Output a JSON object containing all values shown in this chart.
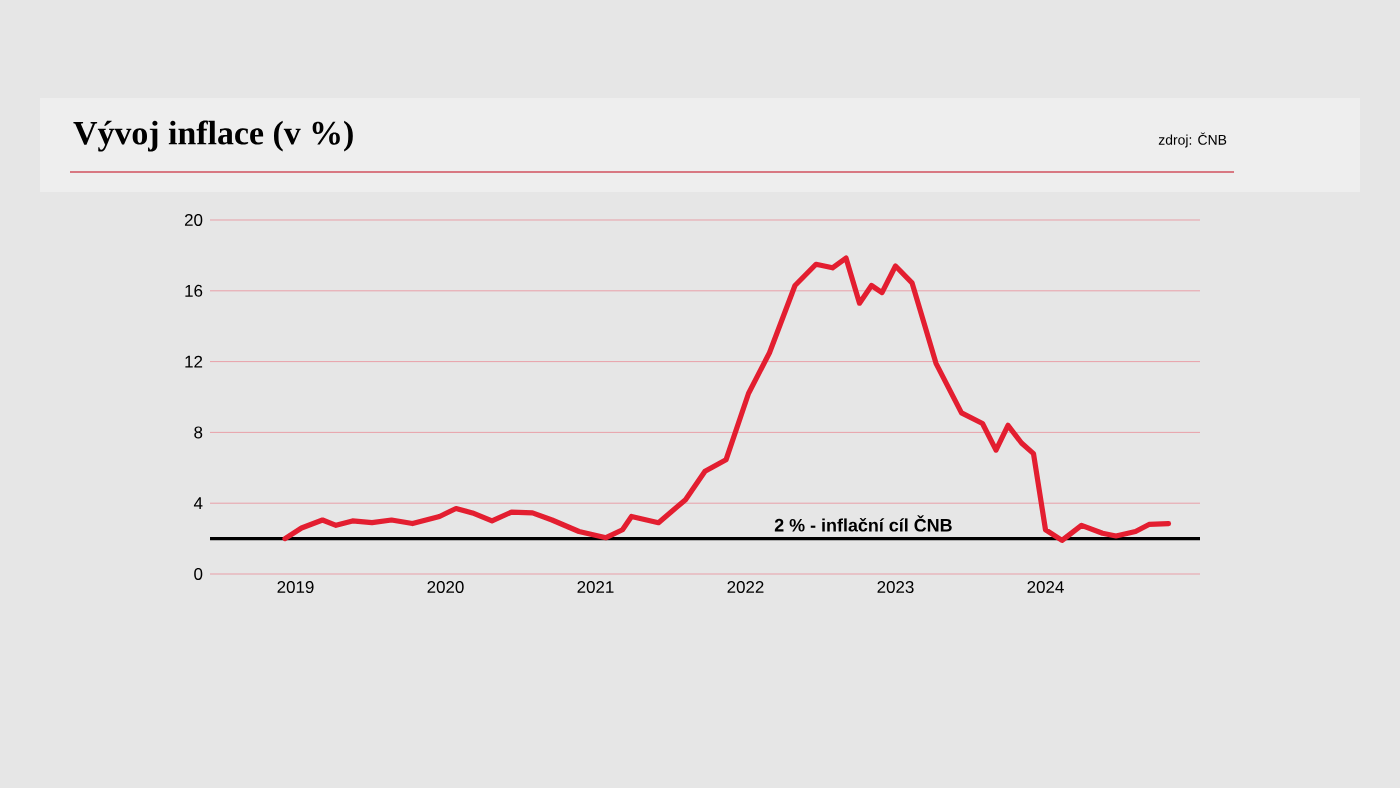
{
  "chart_data": {
    "type": "line",
    "title": "Vývoj inflace (v %)",
    "annotations": [
      "zdroj: ČNB"
    ],
    "x": [
      2018.93,
      2019.04,
      2019.18,
      2019.27,
      2019.38,
      2019.51,
      2019.64,
      2019.78,
      2019.96,
      2020.07,
      2020.18,
      2020.31,
      2020.44,
      2020.58,
      2020.71,
      2020.89,
      2021.07,
      2021.18,
      2021.24,
      2021.42,
      2021.6,
      2021.73,
      2021.87,
      2022.02,
      2022.16,
      2022.33,
      2022.47,
      2022.58,
      2022.67,
      2022.76,
      2022.84,
      2022.91,
      2023.0,
      2023.11,
      2023.27,
      2023.44,
      2023.58,
      2023.67,
      2023.75,
      2023.84,
      2023.92,
      2024.0,
      2024.11,
      2024.24,
      2024.38,
      2024.47,
      2024.6,
      2024.69,
      2024.82
    ],
    "series": [
      {
        "color": "#e31e30",
        "values": [
          2.0,
          2.6,
          3.05,
          2.75,
          3.0,
          2.9,
          3.05,
          2.85,
          3.25,
          3.7,
          3.45,
          3.0,
          3.5,
          3.45,
          3.05,
          2.4,
          2.05,
          2.5,
          3.25,
          2.9,
          4.2,
          5.8,
          6.45,
          10.2,
          12.5,
          16.3,
          17.5,
          17.3,
          17.85,
          15.3,
          16.3,
          15.9,
          17.4,
          16.45,
          11.9,
          9.1,
          8.5,
          7.0,
          8.4,
          7.4,
          6.8,
          2.5,
          1.9,
          2.75,
          2.3,
          2.15,
          2.4,
          2.8,
          2.85
        ]
      }
    ],
    "xlim": [
      2018.43,
      2025.03
    ],
    "ylim": [
      0,
      20
    ],
    "xticks": [
      2019,
      2020,
      2021,
      2022,
      2023,
      2024
    ],
    "yticks": [
      0,
      4,
      8,
      12,
      16,
      20
    ],
    "grid": "y",
    "marker": "none",
    "line_style": "solid",
    "ref_lines": [
      {
        "axis": "y",
        "value": 2,
        "label": "2 % - inflační cíl ČNB",
        "color": "#000000"
      }
    ]
  }
}
